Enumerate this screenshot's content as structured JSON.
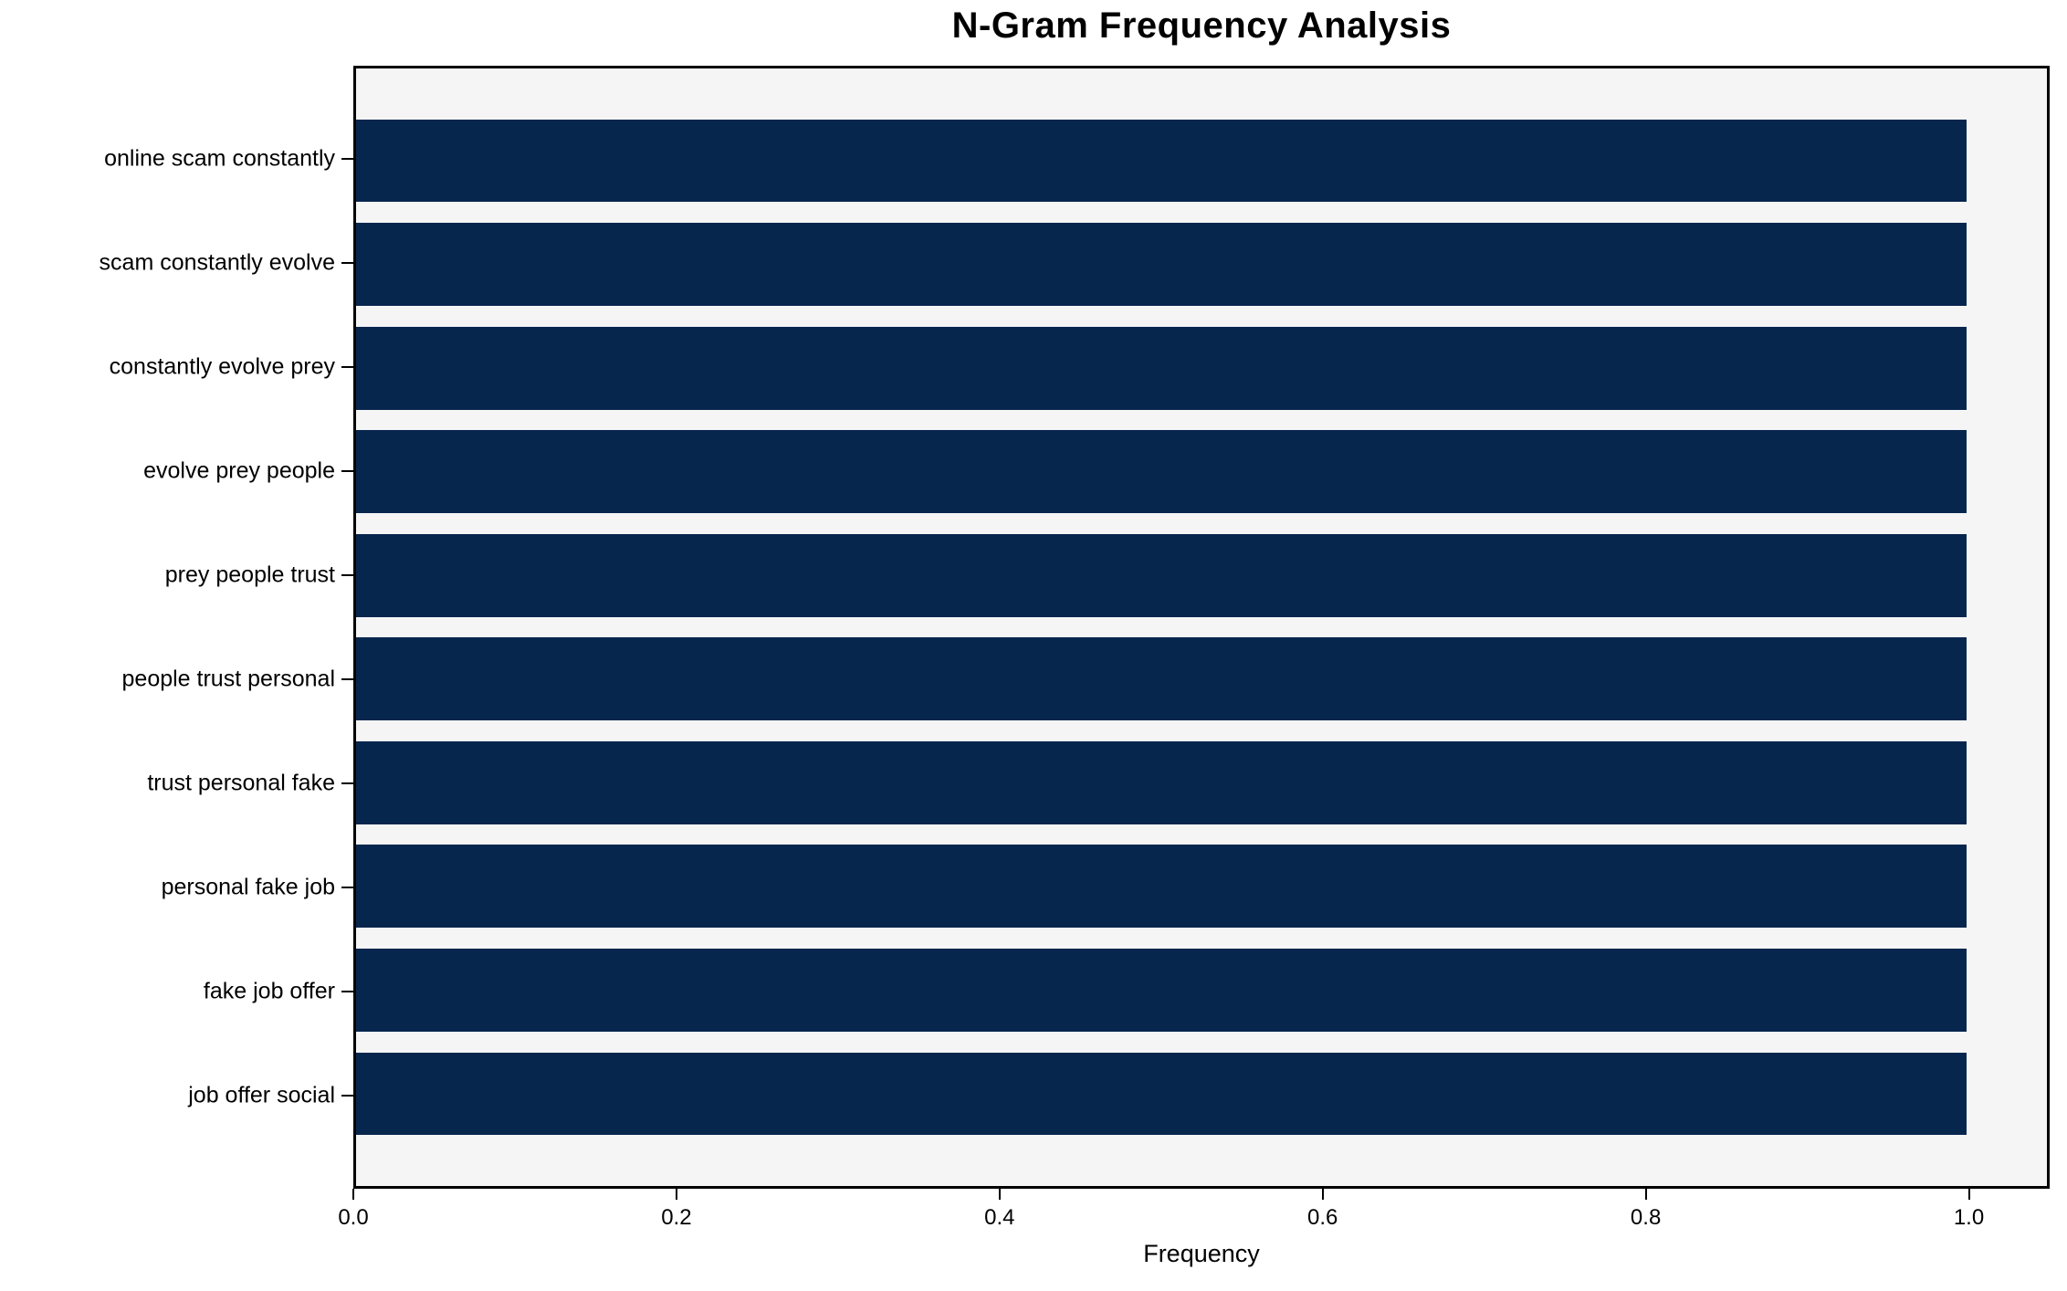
{
  "chart_data": {
    "type": "bar",
    "orientation": "horizontal",
    "title": "N-Gram Frequency Analysis",
    "xlabel": "Frequency",
    "ylabel": "",
    "categories": [
      "online scam constantly",
      "scam constantly evolve",
      "constantly evolve prey",
      "evolve prey people",
      "prey people trust",
      "people trust personal",
      "trust personal fake",
      "personal fake job",
      "fake job offer",
      "job offer social"
    ],
    "values": [
      1.0,
      1.0,
      1.0,
      1.0,
      1.0,
      1.0,
      1.0,
      1.0,
      1.0,
      1.0
    ],
    "xlim": [
      0,
      1.05
    ],
    "xtick_values": [
      0.0,
      0.2,
      0.4,
      0.6,
      0.8,
      1.0
    ],
    "xtick_labels": [
      "0.0",
      "0.2",
      "0.4",
      "0.6",
      "0.8",
      "1.0"
    ],
    "grid": false,
    "legend_position": "none",
    "colors": {
      "bar": "#07264e",
      "plot_background": "#f5f5f6",
      "figure_background": "#ffffff",
      "spine": "#000000",
      "text": "#000000"
    }
  }
}
